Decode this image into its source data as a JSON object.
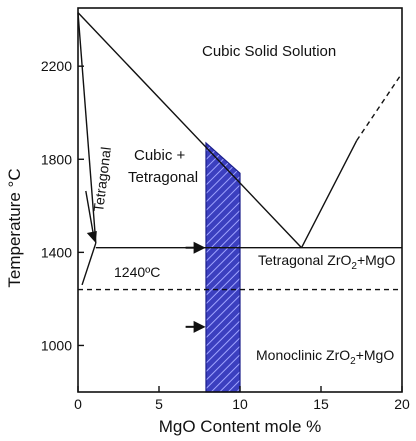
{
  "chart_data": {
    "type": "phase-diagram",
    "xlabel": "MgO Content mole %",
    "ylabel": "Temperature °C",
    "xlim": [
      0,
      20
    ],
    "ylim": [
      800,
      2450
    ],
    "xticks": [
      0,
      5,
      10,
      15,
      20
    ],
    "yticks": [
      1000,
      1400,
      1800,
      2200
    ],
    "grid": false,
    "phase_boundaries": [
      {
        "name": "liquidus-left",
        "x": [
          0,
          13.8
        ],
        "y": [
          2430,
          1420
        ]
      },
      {
        "name": "liquidus-right",
        "x": [
          13.8,
          17.2
        ],
        "y": [
          1420,
          1880
        ],
        "style": "solid"
      },
      {
        "name": "liquidus-right-extension",
        "x": [
          17.2,
          20
        ],
        "y": [
          1880,
          2170
        ],
        "style": "dashed"
      },
      {
        "name": "cubic-tetragonal-boundary",
        "x": [
          0,
          1.1
        ],
        "y": [
          2430,
          1440
        ]
      },
      {
        "name": "tetragonal-tail",
        "x": [
          0.25,
          1.1
        ],
        "y": [
          1260,
          1440
        ]
      },
      {
        "name": "eutectoid-line",
        "x": [
          1.1,
          20
        ],
        "y": [
          1420,
          1420
        ],
        "style": "solid"
      },
      {
        "name": "martensitic-transformation",
        "x": [
          0,
          20
        ],
        "y": [
          1240,
          1240
        ],
        "style": "dashed"
      }
    ],
    "highlight_region": {
      "x": [
        7.9,
        10
      ],
      "y_bottom": 800,
      "top_points": [
        [
          7.9,
          1870
        ],
        [
          10,
          1740
        ]
      ],
      "fill": "#3b3fbf",
      "pattern": "diagonal-hatch"
    },
    "annotations": {
      "cubic_ss": "Cubic Solid Solution",
      "cubic_tet_1": "Cubic +",
      "cubic_tet_2": "Tetragonal",
      "tetragonal": "Tetragonal",
      "temp_1240": "1240ºC",
      "tet_mgo_prefix": "Tetragonal ZrO",
      "tet_mgo_suffix": "+MgO",
      "mono_mgo_prefix": "Monoclinic ZrO",
      "mono_mgo_suffix": "+MgO",
      "subscript_2": "2"
    },
    "arrows": [
      {
        "name": "tetragonal-field-arrow",
        "to": [
          1.1,
          1440
        ]
      },
      {
        "name": "eutectoid-arrow",
        "to": [
          8.0,
          1420
        ]
      },
      {
        "name": "monoclinic-arrow",
        "to": [
          8.0,
          1080
        ]
      }
    ]
  }
}
